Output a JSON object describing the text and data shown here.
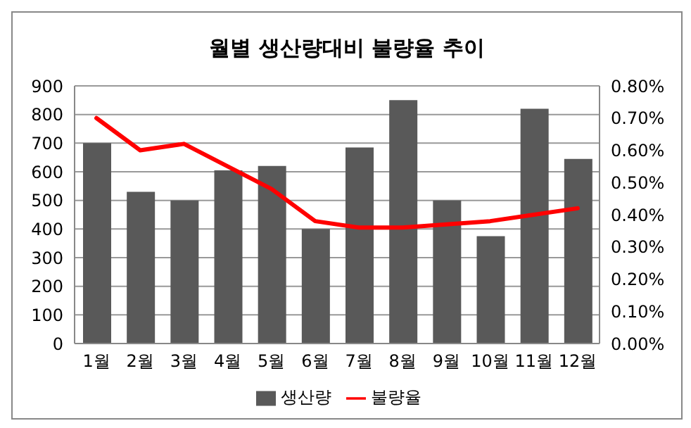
{
  "chart_data": {
    "type": "bar",
    "title": "월별 생산량대비 불량율 추이",
    "categories": [
      "1월",
      "2월",
      "3월",
      "4월",
      "5월",
      "6월",
      "7월",
      "8월",
      "9월",
      "10월",
      "11월",
      "12월"
    ],
    "series": [
      {
        "name": "생산량",
        "color": "#595959",
        "values": [
          700,
          530,
          500,
          605,
          620,
          400,
          685,
          850,
          500,
          375,
          820,
          645
        ]
      },
      {
        "name": "불량율",
        "type": "line",
        "axis": "y2",
        "color": "#ff0000",
        "values": [
          0.7,
          0.6,
          0.62,
          0.55,
          0.48,
          0.38,
          0.36,
          0.36,
          0.37,
          0.38,
          0.4,
          0.42
        ]
      }
    ],
    "ylim": [
      0,
      900
    ],
    "yticks": [
      0,
      100,
      200,
      300,
      400,
      500,
      600,
      700,
      800,
      900
    ],
    "y2lim": [
      0,
      0.8
    ],
    "y2ticks": [
      {
        "value": 0,
        "label": "0.00%"
      },
      {
        "value": 0.1,
        "label": "0.10%"
      },
      {
        "value": 0.2,
        "label": "0.20%"
      },
      {
        "value": 0.3,
        "label": "0.30%"
      },
      {
        "value": 0.4,
        "label": "0.40%"
      },
      {
        "value": 0.5,
        "label": "0.50%"
      },
      {
        "value": 0.6,
        "label": "0.60%"
      },
      {
        "value": 0.7,
        "label": "0.70%"
      },
      {
        "value": 0.8,
        "label": "0.80%"
      }
    ],
    "grid": "y",
    "legend": "bottom",
    "marker": "none",
    "line_style": "solid"
  }
}
